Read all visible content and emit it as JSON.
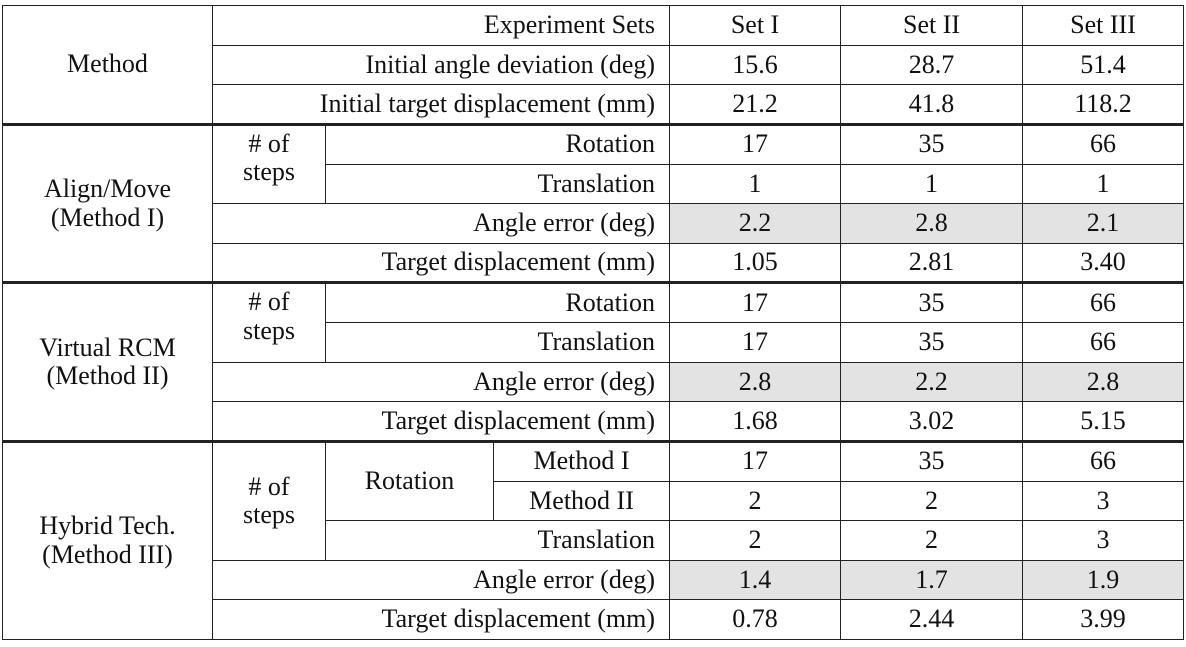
{
  "header": {
    "method_label": "Method",
    "rows": [
      {
        "label": "Experiment Sets",
        "values": [
          "Set I",
          "Set II",
          "Set III"
        ]
      },
      {
        "label": "Initial angle deviation (deg)",
        "values": [
          "15.6",
          "28.7",
          "51.4"
        ]
      },
      {
        "label": "Initial target displacement (mm)",
        "values": [
          "21.2",
          "41.8",
          "118.2"
        ]
      }
    ]
  },
  "labels": {
    "steps_l1": "# of",
    "steps_l2": "steps",
    "rotation": "Rotation",
    "translation": "Translation",
    "angle_error": "Angle error (deg)",
    "target_disp": "Target displacement (mm)",
    "method_i": "Method I",
    "method_ii": "Method II"
  },
  "methods": [
    {
      "name_l1": "Align/Move",
      "name_l2": "(Method I)",
      "rotation": [
        "17",
        "35",
        "66"
      ],
      "translation": [
        "1",
        "1",
        "1"
      ],
      "angle_error": [
        "2.2",
        "2.8",
        "2.1"
      ],
      "target_disp": [
        "1.05",
        "2.81",
        "3.40"
      ]
    },
    {
      "name_l1": "Virtual RCM",
      "name_l2": "(Method II)",
      "rotation": [
        "17",
        "35",
        "66"
      ],
      "translation": [
        "17",
        "35",
        "66"
      ],
      "angle_error": [
        "2.8",
        "2.2",
        "2.8"
      ],
      "target_disp": [
        "1.68",
        "3.02",
        "5.15"
      ]
    },
    {
      "name_l1": "Hybrid Tech.",
      "name_l2": "(Method III)",
      "rotation_method_i": [
        "17",
        "35",
        "66"
      ],
      "rotation_method_ii": [
        "2",
        "2",
        "3"
      ],
      "translation": [
        "2",
        "2",
        "3"
      ],
      "angle_error": [
        "1.4",
        "1.7",
        "1.9"
      ],
      "target_disp": [
        "0.78",
        "2.44",
        "3.99"
      ]
    }
  ],
  "colors": {
    "shade": "#e3e3e3",
    "border": "#222222"
  }
}
